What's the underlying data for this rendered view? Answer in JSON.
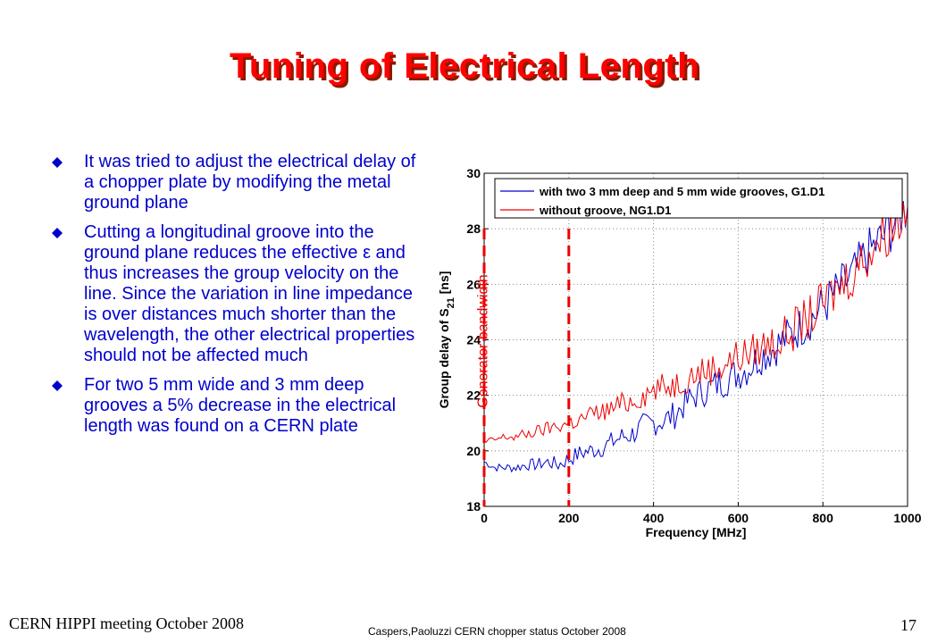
{
  "slide": {
    "title": "Tuning of Electrical Length",
    "bullets": [
      "It was tried to adjust the electrical delay of a chopper plate by modifying the metal ground plane",
      "Cutting a longitudinal groove into the ground plane reduces the effective ε and thus increases the group velocity on the line. Since the variation in line impedance is over distances much shorter than the wavelength, the other electrical properties should not be affected much",
      "For two 5 mm wide and 3 mm deep grooves a 5% decrease in the electrical length was found on a CERN plate"
    ],
    "bullet_icon": "diamond-bullet-icon",
    "footer_left": "CERN HIPPI meeting October 2008",
    "footer_center": "Caspers,Paoluzzi CERN chopper status October 2008",
    "page_number": "17",
    "colors": {
      "title": "#ff0000",
      "title_shadow": "#8a1a00",
      "body_text": "#0000cc"
    }
  },
  "chart_data": {
    "type": "line",
    "xlabel": "Frequency [MHz]",
    "ylabel": "Group delay of S21 [ns]",
    "ylabel_main": "Group delay of S",
    "ylabel_sub": "21",
    "ylabel_tail": " [ns]",
    "xlim": [
      0,
      1000
    ],
    "ylim": [
      18,
      30
    ],
    "xticks": [
      "0",
      "200",
      "400",
      "600",
      "800",
      "1000"
    ],
    "yticks": [
      "18",
      "20",
      "22",
      "24",
      "26",
      "28",
      "30"
    ],
    "grid": true,
    "legend_position": "top",
    "annotation": "Generator bandwidth",
    "bandwidth_markers_x": [
      0,
      200
    ],
    "series": [
      {
        "name": "with two 3 mm deep and 5 mm wide grooves, G1.D1",
        "color": "#0000cc",
        "x": [
          0,
          25,
          50,
          75,
          100,
          125,
          150,
          175,
          200,
          225,
          250,
          275,
          300,
          325,
          350,
          375,
          400,
          425,
          450,
          475,
          500,
          525,
          550,
          575,
          600,
          625,
          650,
          675,
          700,
          725,
          750,
          775,
          800,
          825,
          850,
          875,
          900,
          925,
          950,
          975,
          1000
        ],
        "y": [
          19.6,
          19.4,
          19.4,
          19.4,
          19.5,
          19.5,
          19.6,
          19.5,
          19.7,
          19.9,
          20.0,
          20.1,
          20.3,
          20.5,
          20.6,
          20.9,
          21.0,
          21.1,
          21.3,
          21.7,
          22.0,
          22.2,
          22.4,
          22.6,
          22.8,
          23.0,
          23.4,
          23.6,
          23.9,
          24.2,
          24.5,
          24.8,
          25.2,
          25.6,
          26.0,
          26.4,
          27.0,
          27.4,
          27.8,
          28.4,
          28.8
        ]
      },
      {
        "name": "without groove, NG1.D1",
        "color": "#ee0000",
        "x": [
          0,
          25,
          50,
          75,
          100,
          125,
          150,
          175,
          200,
          225,
          250,
          275,
          300,
          325,
          350,
          375,
          400,
          425,
          450,
          475,
          500,
          525,
          550,
          575,
          600,
          625,
          650,
          675,
          700,
          725,
          750,
          775,
          800,
          825,
          850,
          875,
          900,
          925,
          950,
          975,
          1000
        ],
        "y": [
          20.3,
          20.4,
          20.5,
          20.5,
          20.6,
          20.7,
          20.8,
          20.9,
          21.0,
          21.1,
          21.3,
          21.4,
          21.5,
          21.7,
          21.8,
          22.0,
          22.2,
          22.3,
          22.4,
          22.6,
          22.8,
          22.9,
          23.0,
          23.2,
          23.4,
          23.5,
          23.7,
          23.9,
          24.0,
          24.3,
          24.6,
          24.9,
          25.3,
          25.7,
          26.1,
          26.5,
          27.0,
          27.5,
          27.9,
          28.3,
          28.7
        ]
      }
    ]
  }
}
